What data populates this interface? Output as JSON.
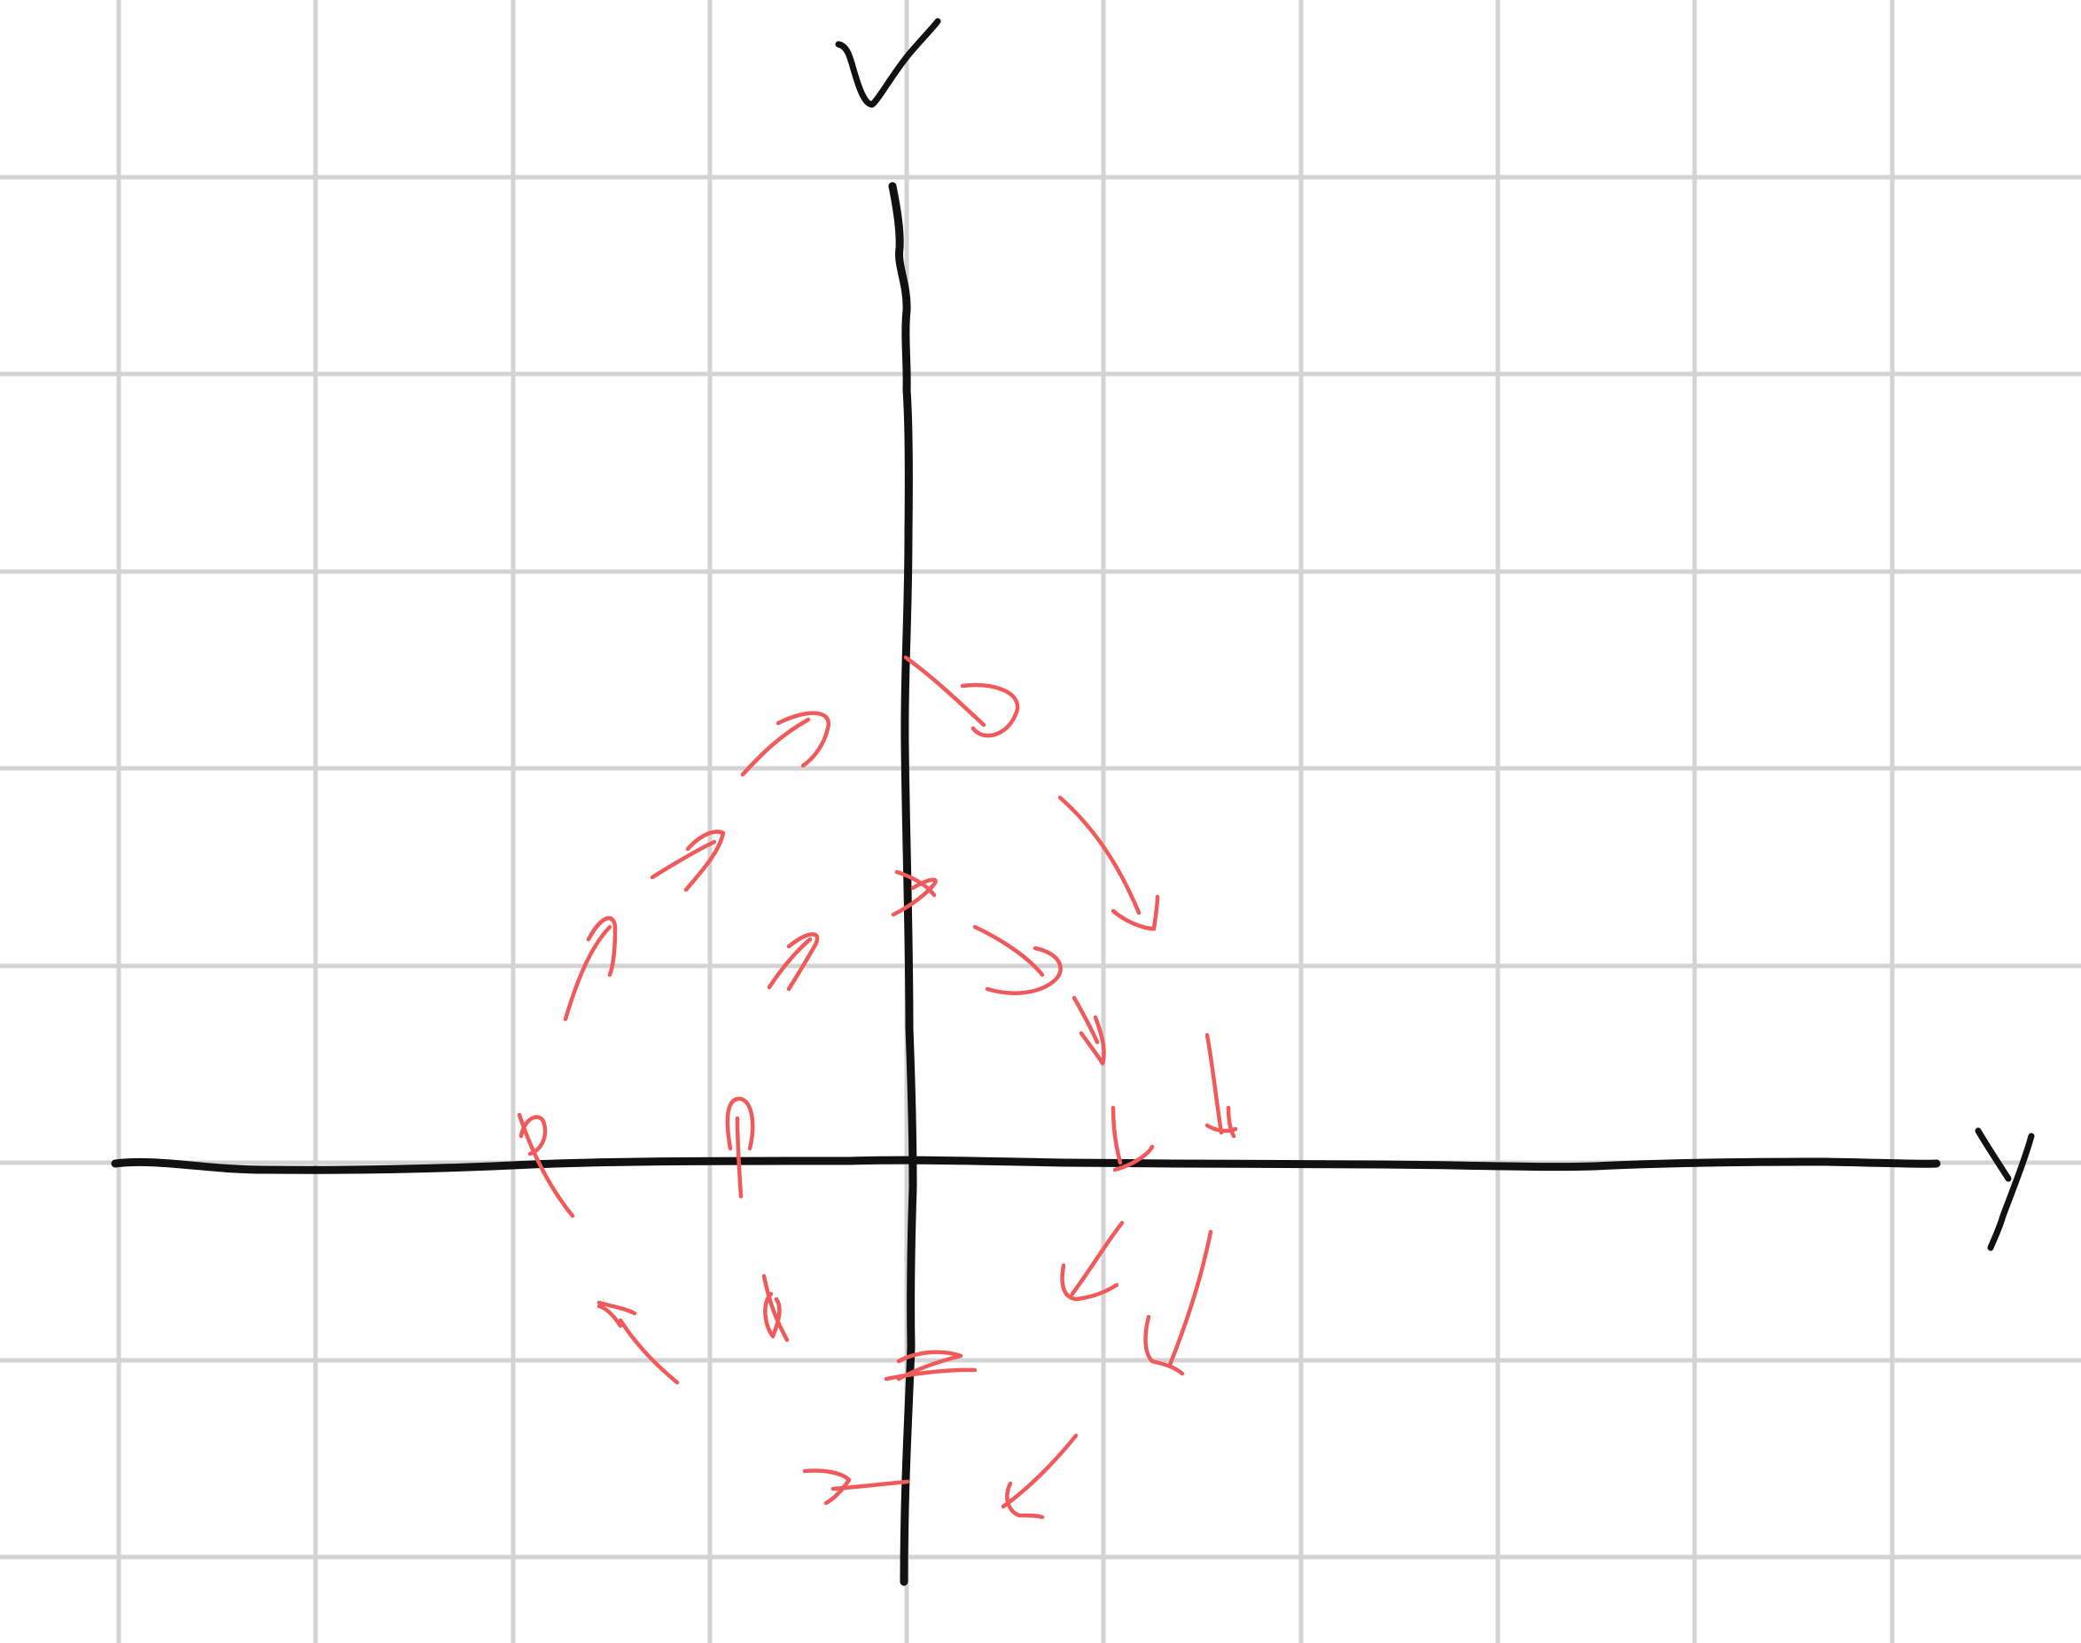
{
  "diagram": {
    "axes": {
      "vertical_label": "V",
      "horizontal_label": "Y"
    },
    "vector_color": "#f05a5a",
    "axis_color": "#111111",
    "grid_color": "#d3d3d3",
    "vector_field": {
      "style": "hand-drawn arrows circulating clockwise around the origin"
    }
  }
}
